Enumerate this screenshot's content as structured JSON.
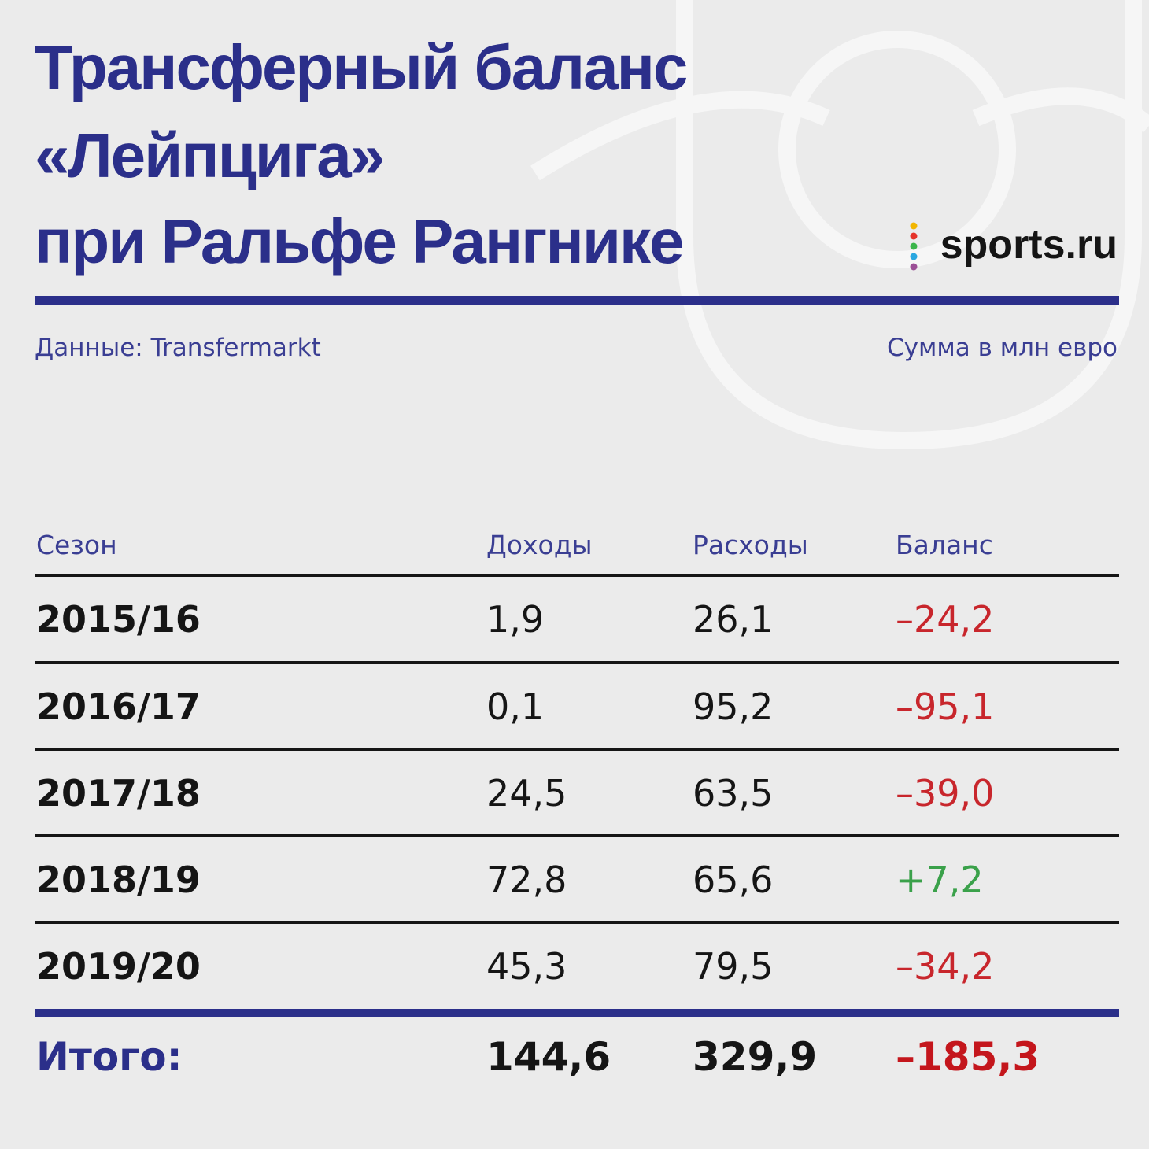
{
  "header": {
    "title_lines": [
      "Трансферный баланс",
      "«Лейпцига»",
      "при Ральфе Рангнике"
    ],
    "logo": "sports.ru",
    "source": "Данные: Transfermarkt",
    "units": "Сумма в млн евро"
  },
  "table": {
    "columns": [
      "Сезон",
      "Доходы",
      "Расходы",
      "Баланс"
    ],
    "rows": [
      [
        "2015/16",
        "1,9",
        "26,1",
        "–24,2"
      ],
      [
        "2016/17",
        "0,1",
        "95,2",
        "–95,1"
      ],
      [
        "2017/18",
        "24,5",
        "63,5",
        "–39,0"
      ],
      [
        "2018/19",
        "72,8",
        "65,6",
        "+7,2"
      ],
      [
        "2019/20",
        "45,3",
        "79,5",
        "–34,2"
      ]
    ],
    "total": [
      "Итого:",
      "144,6",
      "329,9",
      "–185,3"
    ]
  }
}
